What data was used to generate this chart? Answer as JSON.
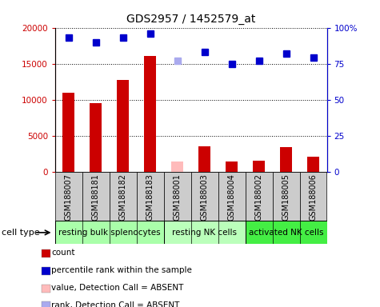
{
  "title": "GDS2957 / 1452579_at",
  "samples": [
    "GSM188007",
    "GSM188181",
    "GSM188182",
    "GSM188183",
    "GSM188001",
    "GSM188003",
    "GSM188004",
    "GSM188002",
    "GSM188005",
    "GSM188006"
  ],
  "counts": [
    11000,
    9500,
    12800,
    16100,
    null,
    3500,
    1400,
    1600,
    3400,
    2100
  ],
  "counts_absent": [
    null,
    null,
    null,
    null,
    1500,
    null,
    null,
    null,
    null,
    null
  ],
  "percentile_ranks": [
    93,
    90,
    93,
    96,
    null,
    83,
    75,
    77,
    82,
    79
  ],
  "percentile_ranks_absent": [
    null,
    null,
    null,
    null,
    77,
    null,
    null,
    null,
    null,
    null
  ],
  "bar_color": "#cc0000",
  "bar_color_absent": "#ffbbbb",
  "dot_color": "#0000cc",
  "dot_color_absent": "#aaaaee",
  "ylim_left": [
    0,
    20000
  ],
  "ylim_right": [
    0,
    100
  ],
  "yticks_left": [
    0,
    5000,
    10000,
    15000,
    20000
  ],
  "ytick_labels_left": [
    "0",
    "5000",
    "10000",
    "15000",
    "20000"
  ],
  "yticks_right": [
    0,
    25,
    50,
    75,
    100
  ],
  "ytick_labels_right": [
    "0",
    "25",
    "50",
    "75",
    "100%"
  ],
  "cell_groups": [
    {
      "label": "resting bulk splenocytes",
      "start": 0,
      "end": 4,
      "color": "#aaffaa"
    },
    {
      "label": "resting NK cells",
      "start": 4,
      "end": 7,
      "color": "#bbffbb"
    },
    {
      "label": "activated NK cells",
      "start": 7,
      "end": 10,
      "color": "#44ee44"
    }
  ],
  "cell_type_label": "cell type",
  "legend_items": [
    {
      "color": "#cc0000",
      "label": "count"
    },
    {
      "color": "#0000cc",
      "label": "percentile rank within the sample"
    },
    {
      "color": "#ffbbbb",
      "label": "value, Detection Call = ABSENT"
    },
    {
      "color": "#aaaaee",
      "label": "rank, Detection Call = ABSENT"
    }
  ],
  "bar_width": 0.45,
  "dot_size": 6,
  "xlabel_gray": "#cccccc",
  "plot_bg": "#ffffff",
  "fig_bg": "#ffffff"
}
